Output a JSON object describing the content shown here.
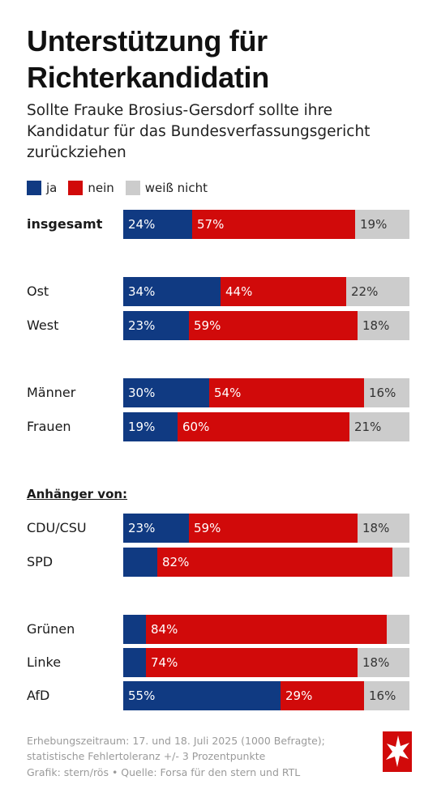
{
  "chart_data": {
    "type": "bar",
    "orientation": "horizontal",
    "stacked": true,
    "title": "Unterstützung für Richterkandidatin",
    "subtitle": "Sollte Frauke Brosius-Gersdorf sollte ihre Kandidatur für das Bundesverfassungsgericht zurückziehen",
    "xlim": [
      0,
      100
    ],
    "grid": false,
    "legend_position": "top-left",
    "series_names": [
      "ja",
      "nein",
      "weiß nicht"
    ],
    "series_colors": [
      "#103a82",
      "#d10a0a",
      "#cccccc"
    ],
    "label_colors": [
      "#ffffff",
      "#ffffff",
      "#333333"
    ],
    "group_heading": "Anhänger von:",
    "rows": [
      {
        "label": "insgesamt",
        "bold": true,
        "values": [
          24,
          57,
          19
        ],
        "labels": [
          "24%",
          "57%",
          "19%"
        ]
      },
      {
        "label": "Ost",
        "values": [
          34,
          44,
          22
        ],
        "labels": [
          "34%",
          "44%",
          "22%"
        ]
      },
      {
        "label": "West",
        "values": [
          23,
          59,
          18
        ],
        "labels": [
          "23%",
          "59%",
          "18%"
        ]
      },
      {
        "label": "Männer",
        "values": [
          30,
          54,
          16
        ],
        "labels": [
          "30%",
          "54%",
          "16%"
        ]
      },
      {
        "label": "Frauen",
        "values": [
          19,
          60,
          21
        ],
        "labels": [
          "19%",
          "60%",
          "21%"
        ]
      },
      {
        "label": "CDU/CSU",
        "values": [
          23,
          59,
          18
        ],
        "labels": [
          "23%",
          "59%",
          "18%"
        ]
      },
      {
        "label": "SPD",
        "values": [
          12,
          82,
          6
        ],
        "labels": [
          "",
          "82%",
          ""
        ]
      },
      {
        "label": "Grünen",
        "values": [
          8,
          84,
          8
        ],
        "labels": [
          "",
          "84%",
          ""
        ]
      },
      {
        "label": "Linke",
        "values": [
          8,
          74,
          18
        ],
        "labels": [
          "",
          "74%",
          "18%"
        ]
      },
      {
        "label": "AfD",
        "values": [
          55,
          29,
          16
        ],
        "labels": [
          "55%",
          "29%",
          "16%"
        ]
      }
    ]
  },
  "footer": {
    "line1": "Erhebungszeitraum: 17. und 18. Juli 2025 (1000 Befragte); statistische Fehlertoleranz +/- 3 Prozentpunkte",
    "credit": "Grafik: stern/rös • Quelle: Forsa für den stern und RTL"
  },
  "logo_icon": "stern-logo-icon"
}
